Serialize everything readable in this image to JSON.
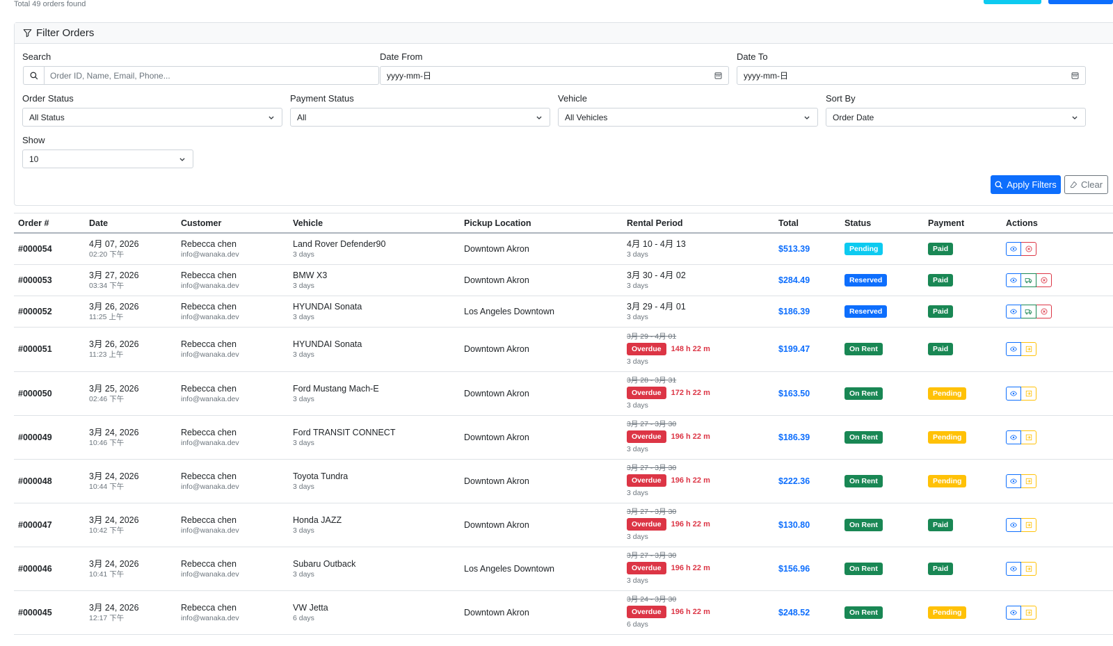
{
  "summary": "Total 49 orders found",
  "filter": {
    "title": "Filter Orders",
    "search_label": "Search",
    "search_placeholder": "Order ID, Name, Email, Phone...",
    "date_from_label": "Date From",
    "date_from_value": "yyyy-mm-日",
    "date_to_label": "Date To",
    "date_to_value": "yyyy-mm-日",
    "order_status_label": "Order Status",
    "order_status_value": "All Status",
    "payment_status_label": "Payment Status",
    "payment_status_value": "All",
    "vehicle_label": "Vehicle",
    "vehicle_value": "All Vehicles",
    "sort_label": "Sort By",
    "sort_value": "Order Date",
    "show_label": "Show",
    "show_value": "10",
    "apply_label": "Apply Filters",
    "clear_label": "Clear"
  },
  "table": {
    "headers": [
      "Order #",
      "Date",
      "Customer",
      "Vehicle",
      "Pickup Location",
      "Rental Period",
      "Total",
      "Status",
      "Payment",
      "Actions"
    ],
    "rows": [
      {
        "order": "#000054",
        "date": "4月 07, 2026",
        "time": "02:20 下午",
        "customer": "Rebecca chen",
        "email": "info@wanaka.dev",
        "vehicle": "Land Rover Defender90",
        "vdays": "3 days",
        "location": "Downtown Akron",
        "period": "4月 10 - 4月 13",
        "pdays": "3 days",
        "overdue": "",
        "total": "$513.39",
        "status": "Pending",
        "payment": "Paid"
      },
      {
        "order": "#000053",
        "date": "3月 27, 2026",
        "time": "03:34 下午",
        "customer": "Rebecca chen",
        "email": "info@wanaka.dev",
        "vehicle": "BMW X3",
        "vdays": "3 days",
        "location": "Downtown Akron",
        "period": "3月 30 - 4月 02",
        "pdays": "3 days",
        "overdue": "",
        "total": "$284.49",
        "status": "Reserved",
        "payment": "Paid"
      },
      {
        "order": "#000052",
        "date": "3月 26, 2026",
        "time": "11:25 上午",
        "customer": "Rebecca chen",
        "email": "info@wanaka.dev",
        "vehicle": "HYUNDAI Sonata",
        "vdays": "3 days",
        "location": "Los Angeles Downtown",
        "period": "3月 29 - 4月 01",
        "pdays": "3 days",
        "overdue": "",
        "total": "$186.39",
        "status": "Reserved",
        "payment": "Paid"
      },
      {
        "order": "#000051",
        "date": "3月 26, 2026",
        "time": "11:23 上午",
        "customer": "Rebecca chen",
        "email": "info@wanaka.dev",
        "vehicle": "HYUNDAI Sonata",
        "vdays": "3 days",
        "location": "Downtown Akron",
        "period": "3月 29 - 4月 01",
        "pdays": "3 days",
        "overdue": "148 h 22 m",
        "total": "$199.47",
        "status": "On Rent",
        "payment": "Paid"
      },
      {
        "order": "#000050",
        "date": "3月 25, 2026",
        "time": "02:46 下午",
        "customer": "Rebecca chen",
        "email": "info@wanaka.dev",
        "vehicle": "Ford Mustang Mach-E",
        "vdays": "3 days",
        "location": "Downtown Akron",
        "period": "3月 28 - 3月 31",
        "pdays": "3 days",
        "overdue": "172 h 22 m",
        "total": "$163.50",
        "status": "On Rent",
        "payment": "Pending"
      },
      {
        "order": "#000049",
        "date": "3月 24, 2026",
        "time": "10:46 下午",
        "customer": "Rebecca chen",
        "email": "info@wanaka.dev",
        "vehicle": "Ford TRANSIT CONNECT",
        "vdays": "3 days",
        "location": "Downtown Akron",
        "period": "3月 27 - 3月 30",
        "pdays": "3 days",
        "overdue": "196 h 22 m",
        "total": "$186.39",
        "status": "On Rent",
        "payment": "Pending"
      },
      {
        "order": "#000048",
        "date": "3月 24, 2026",
        "time": "10:44 下午",
        "customer": "Rebecca chen",
        "email": "info@wanaka.dev",
        "vehicle": "Toyota Tundra",
        "vdays": "3 days",
        "location": "Downtown Akron",
        "period": "3月 27 - 3月 30",
        "pdays": "3 days",
        "overdue": "196 h 22 m",
        "total": "$222.36",
        "status": "On Rent",
        "payment": "Pending"
      },
      {
        "order": "#000047",
        "date": "3月 24, 2026",
        "time": "10:42 下午",
        "customer": "Rebecca chen",
        "email": "info@wanaka.dev",
        "vehicle": "Honda JAZZ",
        "vdays": "3 days",
        "location": "Downtown Akron",
        "period": "3月 27 - 3月 30",
        "pdays": "3 days",
        "overdue": "196 h 22 m",
        "total": "$130.80",
        "status": "On Rent",
        "payment": "Paid"
      },
      {
        "order": "#000046",
        "date": "3月 24, 2026",
        "time": "10:41 下午",
        "customer": "Rebecca chen",
        "email": "info@wanaka.dev",
        "vehicle": "Subaru Outback",
        "vdays": "3 days",
        "location": "Los Angeles Downtown",
        "period": "3月 27 - 3月 30",
        "pdays": "3 days",
        "overdue": "196 h 22 m",
        "total": "$156.96",
        "status": "On Rent",
        "payment": "Paid"
      },
      {
        "order": "#000045",
        "date": "3月 24, 2026",
        "time": "12:17 下午",
        "customer": "Rebecca chen",
        "email": "info@wanaka.dev",
        "vehicle": "VW Jetta",
        "vdays": "6 days",
        "location": "Downtown Akron",
        "period": "3月 24 - 3月 30",
        "pdays": "6 days",
        "overdue": "196 h 22 m",
        "total": "$248.52",
        "status": "On Rent",
        "payment": "Pending"
      }
    ],
    "overdue_label": "Overdue"
  },
  "colors": {
    "primary": "#0d6efd",
    "info": "#0dcaf0",
    "success": "#198754",
    "warning": "#ffc107",
    "danger": "#dc3545"
  }
}
